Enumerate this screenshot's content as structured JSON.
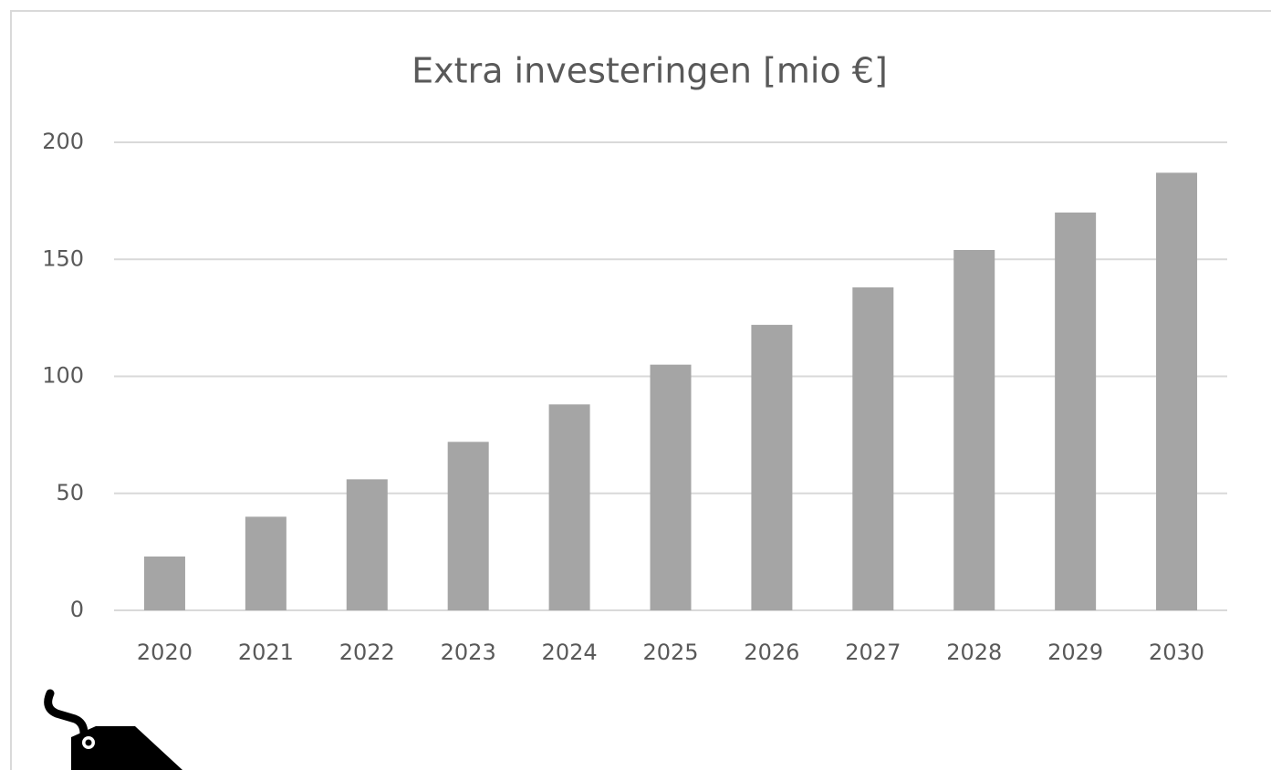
{
  "chart_data": {
    "type": "bar",
    "title": "Extra investeringen [mio €]",
    "categories": [
      "2020",
      "2021",
      "2022",
      "2023",
      "2024",
      "2025",
      "2026",
      "2027",
      "2028",
      "2029",
      "2030"
    ],
    "values": [
      23,
      40,
      56,
      72,
      88,
      105,
      122,
      138,
      154,
      170,
      187
    ],
    "color": "#a5a5a5",
    "ylim": [
      0,
      200
    ],
    "yticks": [
      0,
      50,
      100,
      150,
      200
    ],
    "grid": true
  }
}
